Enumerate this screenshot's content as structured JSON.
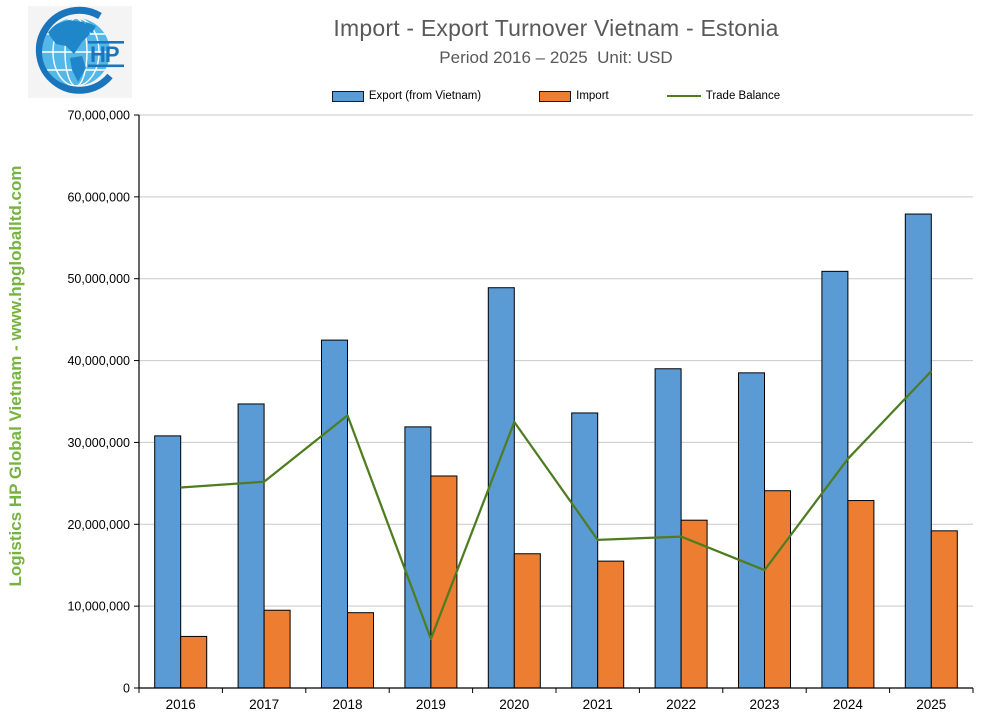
{
  "header": {
    "title": "Import - Export Turnover Vietnam - Estonia",
    "subtitle": "Period 2016 – 2025  Unit: USD",
    "title_color": "#595959"
  },
  "logo": {
    "monogram": "HP"
  },
  "watermark": {
    "text": "Logistics HP Global Vietnam - www.hpgloballtd.com",
    "color": "#77B43F"
  },
  "legend": {
    "position": "top",
    "items": [
      {
        "label": "Export (from Vietnam)",
        "color": "#5B9BD5",
        "marker": "bar"
      },
      {
        "label": "Import",
        "color": "#ED7D31",
        "marker": "bar"
      },
      {
        "label": "Trade Balance",
        "color": "#4E7D21",
        "marker": "line"
      }
    ]
  },
  "chart_data": {
    "type": "bar",
    "subtype": "clustered-bars-with-line",
    "title": "Import - Export Turnover Vietnam - Estonia",
    "subtitle": "Period 2016 – 2025  Unit: USD",
    "xlabel": "",
    "ylabel": "",
    "unit": "USD",
    "grid": true,
    "legend_position": "top",
    "ylim": [
      0,
      70000000
    ],
    "ytick_step": 10000000,
    "ytick_labels": [
      "0",
      "10,000,000",
      "20,000,000",
      "30,000,000",
      "40,000,000",
      "50,000,000",
      "60,000,000",
      "70,000,000"
    ],
    "categories": [
      "2016",
      "2017",
      "2018",
      "2019",
      "2020",
      "2021",
      "2022",
      "2023",
      "2024",
      "2025"
    ],
    "series": [
      {
        "name": "Export (from Vietnam)",
        "slug": "export",
        "type": "bar",
        "color": "#5B9BD5",
        "values": [
          30800000,
          34700000,
          42500000,
          31900000,
          48900000,
          33600000,
          39000000,
          38500000,
          50900000,
          57900000
        ]
      },
      {
        "name": "Import",
        "slug": "import",
        "type": "bar",
        "color": "#ED7D31",
        "values": [
          6300000,
          9500000,
          9200000,
          25900000,
          16400000,
          15500000,
          20500000,
          24100000,
          22900000,
          19200000
        ]
      },
      {
        "name": "Trade Balance",
        "slug": "trade-balance",
        "type": "line",
        "color": "#4E7D21",
        "values": [
          24500000,
          25200000,
          33300000,
          6000000,
          32500000,
          18100000,
          18500000,
          14400000,
          28000000,
          38700000
        ]
      }
    ]
  }
}
